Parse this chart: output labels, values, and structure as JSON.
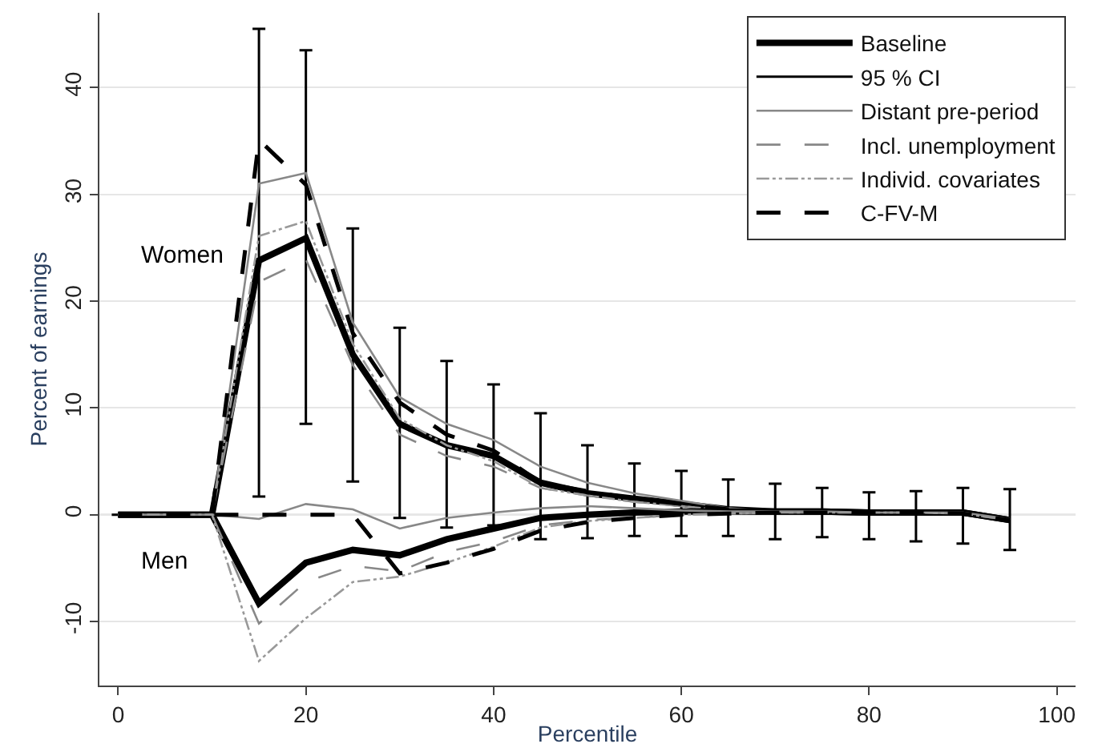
{
  "chart_data": {
    "type": "line",
    "xlabel": "Percentile",
    "ylabel": "Percent of earnings",
    "x": [
      0,
      5,
      10,
      15,
      20,
      25,
      30,
      35,
      40,
      45,
      50,
      55,
      60,
      65,
      70,
      75,
      80,
      85,
      90,
      95
    ],
    "xlim": [
      -2,
      102
    ],
    "xticks": [
      0,
      20,
      40,
      60,
      80,
      100
    ],
    "ylim": [
      -16,
      47
    ],
    "yticks": [
      -10,
      0,
      10,
      20,
      30,
      40
    ],
    "grid": "y",
    "legend": "top right",
    "ref_lines": [
      {
        "axis": "y",
        "value": 0,
        "label": null,
        "color": "#aaaaaa"
      }
    ],
    "annotations": [
      "Women",
      "Men"
    ],
    "series": [
      {
        "name": "Baseline",
        "color": "#000000",
        "line_style": "solid",
        "values": [
          0,
          0,
          0,
          23.8,
          25.9,
          15,
          8.5,
          6.5,
          5.5,
          3,
          2,
          1.5,
          1,
          0.5,
          0.3,
          0.3,
          0.2,
          0.2,
          0.2,
          -0.5
        ],
        "errors": [
          null,
          null,
          null,
          [
            1.7,
            45.5
          ],
          [
            8.5,
            43.5
          ],
          [
            3.1,
            26.8
          ],
          [
            -0.3,
            17.5
          ],
          [
            -1.2,
            14.4
          ],
          [
            -1,
            12.2
          ],
          [
            -2.3,
            9.5
          ],
          [
            -2.2,
            6.5
          ],
          [
            -2,
            4.8
          ],
          [
            -2,
            4.1
          ],
          [
            -2,
            3.3
          ],
          [
            -2.3,
            2.9
          ],
          [
            -2.1,
            2.5
          ],
          [
            -2.3,
            2.1
          ],
          [
            -2.5,
            2.2
          ],
          [
            -2.7,
            2.5
          ],
          [
            -3.3,
            2.4
          ]
        ]
      },
      {
        "name": "95 % CI",
        "color": "#000000",
        "line_style": "solid",
        "values": [
          null,
          null,
          null,
          null,
          null,
          null,
          null,
          null,
          null,
          null,
          null,
          null,
          null,
          null,
          null,
          null,
          null,
          null,
          null,
          null
        ]
      },
      {
        "name": "Distant pre-period",
        "color": "#888888",
        "line_style": "solid",
        "values": [
          0,
          0,
          0,
          31,
          32,
          18,
          11,
          8.5,
          7,
          4.5,
          3,
          2,
          1.3,
          0.6,
          0.3,
          0.3,
          0.3,
          0.3,
          0.2,
          -0.4
        ]
      },
      {
        "name": "Incl. unemployment",
        "color": "#888888",
        "line_style": "dashed",
        "values": [
          0,
          0,
          0,
          21.8,
          23.9,
          14,
          7.5,
          5.5,
          4.5,
          2.5,
          1.8,
          1.2,
          0.8,
          0.4,
          0.2,
          0.2,
          0.2,
          0.2,
          0.1,
          -0.5
        ]
      },
      {
        "name": "Individ. covariates",
        "color": "#999999",
        "line_style": "dotted",
        "values": [
          0,
          0,
          0,
          26.1,
          27.5,
          16,
          9,
          6.5,
          5,
          2.5,
          1.8,
          1.2,
          0.8,
          0.4,
          0.2,
          0.2,
          0.2,
          0.2,
          0.1,
          -0.5
        ]
      },
      {
        "name": "C-FV-M",
        "color": "#000000",
        "line_style": "dashed",
        "values": [
          0,
          0,
          0,
          35.1,
          30.9,
          17,
          10.5,
          7.5,
          6,
          3,
          2.2,
          1.5,
          1,
          0.5,
          0.2,
          0.2,
          0.2,
          0.2,
          0.1,
          -0.5
        ]
      },
      {
        "color": "#000000",
        "line_style": "solid",
        "values": [
          0,
          0,
          0,
          -8.3,
          -4.5,
          -3.3,
          -3.8,
          -2.3,
          -1.3,
          -0.3,
          0,
          0.2,
          0.3,
          0.3,
          0.3,
          0.3,
          0.2,
          0.2,
          0.2,
          -0.5
        ]
      },
      {
        "color": "#888888",
        "line_style": "solid",
        "values": [
          0,
          0,
          0,
          -0.4,
          1,
          0.5,
          -1.3,
          -0.3,
          0.2,
          0.6,
          0.8,
          0.6,
          0.4,
          0.3,
          0.3,
          0.3,
          0.2,
          0.2,
          0.2,
          -0.4
        ]
      },
      {
        "color": "#888888",
        "line_style": "dashed",
        "values": [
          0,
          0,
          0,
          -10.2,
          -6.3,
          -4.8,
          -5.3,
          -3.5,
          -2.5,
          -1,
          -0.5,
          -0.3,
          0,
          0.1,
          0.2,
          0.2,
          0.2,
          0.2,
          0.1,
          -0.5
        ]
      },
      {
        "color": "#999999",
        "line_style": "dotted",
        "values": [
          0,
          0,
          0,
          -13.7,
          -9.7,
          -6.3,
          -5.8,
          -4.5,
          -3,
          -1.2,
          -0.6,
          -0.3,
          0,
          0.1,
          0.2,
          0.2,
          0.2,
          0.2,
          0.1,
          -0.5
        ]
      },
      {
        "color": "#000000",
        "line_style": "dashed",
        "values": [
          0,
          0,
          0,
          0,
          0,
          0,
          -5.5,
          -4.5,
          -3.2,
          -1.5,
          -0.7,
          -0.3,
          0,
          0.1,
          0.2,
          0.2,
          0.2,
          0.2,
          0.1,
          -0.5
        ]
      }
    ]
  }
}
